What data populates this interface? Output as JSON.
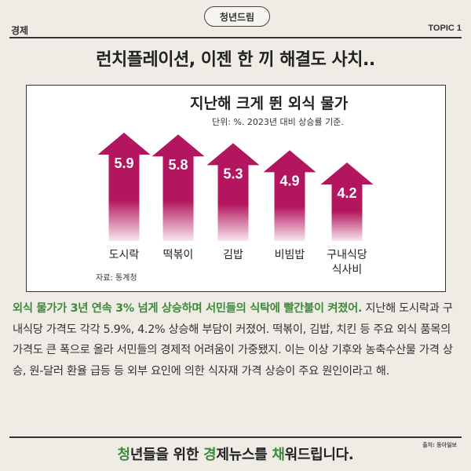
{
  "header": {
    "badge": "청년드림",
    "section": "경제",
    "topic": "TOPIC 1",
    "headline": "런치플레이션, 이젠 한 끼 해결도 사치.."
  },
  "chart_data": {
    "type": "bar",
    "title": "지난해 크게 뛴 외식 물가",
    "subtitle": "단위: %. 2023년 대비 상승률 기준.",
    "source": "자료: 통계청",
    "categories": [
      "도시락",
      "떡볶이",
      "김밥",
      "비빔밥",
      "구내식당 식사비"
    ],
    "category_lines": [
      [
        "도시락"
      ],
      [
        "떡볶이"
      ],
      [
        "김밥"
      ],
      [
        "비빔밥"
      ],
      [
        "구내식당",
        "식사비"
      ]
    ],
    "values": [
      5.9,
      5.8,
      5.3,
      4.9,
      4.2
    ],
    "value_labels": [
      "5.9",
      "5.8",
      "5.3",
      "4.9",
      "4.2"
    ],
    "colors": {
      "top": "#b3155e",
      "bottom": "#f8e6ee"
    }
  },
  "body": {
    "lead": "외식 물가가 3년 연속 3% 넘게 상승하며 서민들의 식탁에 빨간불이 켜졌어.",
    "text": " 지난해 도시락과 구내식당 가격도 각각 5.9%, 4.2% 상승해 부담이 커졌어. 떡볶이, 김밥, 치킨 등 주요 외식 품목의 가격도 큰 폭으로 올라 서민들의 경제적 어려움이 가중됐지. 이는 이상 기후와 농축수산물 가격 상승, 원-달러 환율 급등 등 외부 요인에 의한 식자재 가격 상승이 주요 원인이라고 해."
  },
  "credit": "출처: 동아일보",
  "footer": {
    "parts": [
      {
        "text": "청",
        "hl": true
      },
      {
        "text": "년들을 위한 ",
        "hl": false
      },
      {
        "text": "경",
        "hl": true
      },
      {
        "text": "제뉴스를 ",
        "hl": false
      },
      {
        "text": "채",
        "hl": true
      },
      {
        "text": "워드립니다.",
        "hl": false
      }
    ]
  }
}
